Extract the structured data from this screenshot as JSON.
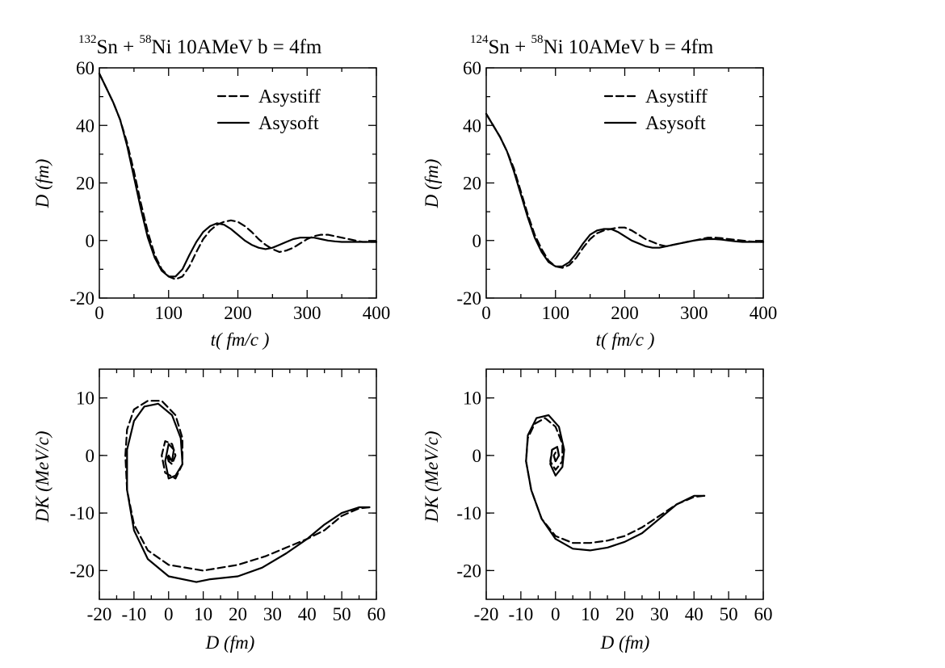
{
  "chart_data": [
    {
      "type": "line",
      "title_parts": {
        "mass1": "132",
        "el1": "Sn + ",
        "mass2": "58",
        "el2": "Ni  10AMeV  b = 4fm"
      },
      "xlabel": "t( fm/c )",
      "ylabel": "D (fm)",
      "xlim": [
        0,
        400
      ],
      "ylim": [
        -20,
        60
      ],
      "xticks": [
        0,
        100,
        200,
        300,
        400
      ],
      "yticks": [
        -20,
        0,
        20,
        40,
        60
      ],
      "xtick_labels": [
        "0",
        "100",
        "200",
        "300",
        "400"
      ],
      "ytick_labels": [
        "-20",
        "0",
        "20",
        "40",
        "60"
      ],
      "legend": {
        "placement": "top-right",
        "entries": [
          "Asystiff",
          "Asysoft"
        ]
      },
      "series": [
        {
          "name": "Asystiff",
          "style": "dashed",
          "x": [
            0,
            10,
            20,
            30,
            40,
            50,
            60,
            70,
            80,
            90,
            100,
            110,
            120,
            130,
            140,
            150,
            160,
            170,
            180,
            190,
            200,
            210,
            220,
            230,
            240,
            250,
            260,
            270,
            280,
            290,
            300,
            310,
            320,
            330,
            340,
            350,
            360,
            370,
            380,
            390,
            400
          ],
          "y": [
            58,
            53,
            48,
            42,
            34,
            24,
            13,
            3,
            -5,
            -10,
            -12.5,
            -13.5,
            -12.5,
            -9,
            -4,
            0.5,
            3.5,
            5.5,
            6.5,
            7,
            6.5,
            5,
            3,
            0.5,
            -1.5,
            -3,
            -4,
            -3.5,
            -2.5,
            -1,
            0.5,
            1.5,
            2,
            2,
            1.5,
            1,
            0.5,
            0,
            -0.5,
            -0.5,
            -0.5
          ]
        },
        {
          "name": "Asysoft",
          "style": "solid",
          "x": [
            0,
            10,
            20,
            30,
            40,
            50,
            60,
            70,
            80,
            90,
            100,
            110,
            120,
            130,
            140,
            150,
            160,
            170,
            180,
            190,
            200,
            210,
            220,
            230,
            240,
            250,
            260,
            270,
            280,
            290,
            300,
            310,
            320,
            330,
            340,
            350,
            360,
            370,
            380,
            390,
            400
          ],
          "y": [
            58,
            53,
            48,
            42,
            33,
            22,
            11,
            1,
            -6,
            -10.5,
            -12.5,
            -12.5,
            -10,
            -5,
            -0.5,
            3,
            5,
            6,
            5.5,
            4,
            2,
            0,
            -1.5,
            -2.5,
            -3,
            -2.5,
            -1.5,
            -0.5,
            0.5,
            1,
            1,
            1,
            0.5,
            0,
            -0.3,
            -0.5,
            -0.5,
            -0.5,
            -0.5,
            -0.5,
            -0.5
          ]
        }
      ]
    },
    {
      "type": "line",
      "title_parts": {
        "mass1": "124",
        "el1": "Sn + ",
        "mass2": "58",
        "el2": "Ni  10AMeV  b = 4fm"
      },
      "xlabel": "t( fm/c )",
      "ylabel": "D (fm)",
      "xlim": [
        0,
        400
      ],
      "ylim": [
        -20,
        60
      ],
      "xticks": [
        0,
        100,
        200,
        300,
        400
      ],
      "yticks": [
        -20,
        0,
        20,
        40,
        60
      ],
      "xtick_labels": [
        "0",
        "100",
        "200",
        "300",
        "400"
      ],
      "ytick_labels": [
        "-20",
        "0",
        "20",
        "40",
        "60"
      ],
      "legend": {
        "placement": "top-right",
        "entries": [
          "Asystiff",
          "Asysoft"
        ]
      },
      "series": [
        {
          "name": "Asystiff",
          "style": "dashed",
          "x": [
            0,
            10,
            20,
            30,
            40,
            50,
            60,
            70,
            80,
            90,
            100,
            110,
            120,
            130,
            140,
            150,
            160,
            170,
            180,
            190,
            200,
            210,
            220,
            230,
            240,
            250,
            260,
            270,
            280,
            290,
            300,
            310,
            320,
            330,
            340,
            350,
            360,
            370,
            380,
            390,
            400
          ],
          "y": [
            44,
            40,
            36,
            31,
            25,
            17,
            9,
            2,
            -3,
            -7,
            -9,
            -9.5,
            -8.5,
            -6,
            -2.5,
            0.5,
            2.5,
            3.5,
            4,
            4.5,
            4.5,
            3.5,
            2,
            0.5,
            -0.5,
            -1.5,
            -2,
            -1.5,
            -1,
            -0.5,
            0,
            0.5,
            1,
            1,
            0.8,
            0.5,
            0.2,
            0,
            -0.3,
            -0.5,
            -0.5
          ]
        },
        {
          "name": "Asysoft",
          "style": "solid",
          "x": [
            0,
            10,
            20,
            30,
            40,
            50,
            60,
            70,
            80,
            90,
            100,
            110,
            120,
            130,
            140,
            150,
            160,
            170,
            180,
            190,
            200,
            210,
            220,
            230,
            240,
            250,
            260,
            270,
            280,
            290,
            300,
            310,
            320,
            330,
            340,
            350,
            360,
            370,
            380,
            390,
            400
          ],
          "y": [
            44,
            40,
            36,
            31,
            24,
            16,
            8,
            1,
            -4,
            -7.5,
            -9,
            -9,
            -7.5,
            -4.5,
            -1,
            2,
            3.5,
            4,
            4,
            3,
            1.5,
            0,
            -1,
            -2,
            -2.5,
            -2.5,
            -2,
            -1.5,
            -1,
            -0.5,
            0,
            0.3,
            0.5,
            0.5,
            0.3,
            0,
            -0.3,
            -0.5,
            -0.5,
            -0.5,
            -0.5
          ]
        }
      ]
    },
    {
      "type": "line",
      "title": "",
      "xlabel": "D (fm)",
      "ylabel": "DK (MeV/c)",
      "xlim": [
        -20,
        60
      ],
      "ylim": [
        -25,
        15
      ],
      "xticks": [
        -20,
        -10,
        0,
        10,
        20,
        30,
        40,
        50,
        60
      ],
      "yticks": [
        -20,
        -10,
        0,
        10
      ],
      "xtick_labels": [
        "-20",
        "-10",
        "0",
        "10",
        "20",
        "30",
        "40",
        "50",
        "60"
      ],
      "ytick_labels": [
        "-20",
        "-10",
        "0",
        "10"
      ],
      "series": [
        {
          "name": "Asystiff",
          "style": "dashed",
          "x": [
            58,
            55,
            50,
            45,
            40,
            34,
            28,
            20,
            10,
            0,
            -6,
            -10,
            -12,
            -12.5,
            -12,
            -10,
            -6,
            -2,
            2,
            4,
            4,
            2,
            -1,
            -2,
            -1,
            1,
            2,
            1,
            0,
            -0.5,
            0
          ],
          "y": [
            -9,
            -9.2,
            -10.5,
            -13,
            -14.5,
            -16,
            -17.5,
            -19,
            -20,
            -19,
            -16.5,
            -12,
            -6,
            0,
            4.5,
            8,
            9.5,
            9.5,
            7,
            3,
            -1.5,
            -4,
            -3,
            0,
            2.5,
            2,
            0,
            -1.5,
            -1,
            0,
            -0.5
          ]
        },
        {
          "name": "Asysoft",
          "style": "solid",
          "x": [
            58,
            55,
            50,
            45,
            40,
            34,
            27,
            20,
            12,
            8,
            0,
            -6,
            -10,
            -12,
            -12,
            -10,
            -7,
            -3,
            1,
            3.5,
            4,
            2,
            0,
            -1,
            0,
            1.5,
            1,
            0,
            0,
            0.5
          ],
          "y": [
            -9,
            -9,
            -10,
            -12,
            -14.5,
            -17,
            -19.5,
            -21,
            -21.5,
            -22,
            -21,
            -18,
            -13,
            -6,
            1,
            6,
            8.5,
            9,
            7,
            3,
            -1.5,
            -3.5,
            -4,
            -1,
            2,
            1,
            -1,
            0,
            -1,
            -0.5
          ]
        }
      ]
    },
    {
      "type": "line",
      "title": "",
      "xlabel": "D (fm)",
      "ylabel": "DK (MeV/c)",
      "xlim": [
        -20,
        60
      ],
      "ylim": [
        -25,
        15
      ],
      "xticks": [
        -20,
        -10,
        0,
        10,
        20,
        30,
        40,
        50,
        60
      ],
      "yticks": [
        -20,
        -10,
        0,
        10
      ],
      "xtick_labels": [
        "-20",
        "-10",
        "0",
        "10",
        "20",
        "30",
        "40",
        "50",
        "60"
      ],
      "ytick_labels": [
        "-20",
        "-10",
        "0",
        "10"
      ],
      "series": [
        {
          "name": "Asystiff",
          "style": "dashed",
          "x": [
            43,
            40,
            35,
            30,
            25,
            20,
            15,
            10,
            5,
            0,
            -4,
            -7,
            -8.5,
            -8,
            -6,
            -3,
            0,
            2,
            2,
            0,
            -1.5,
            -1,
            0.5,
            1,
            0,
            -0.5,
            0
          ],
          "y": [
            -7,
            -7.2,
            -8.5,
            -10.5,
            -12.5,
            -14,
            -14.8,
            -15.2,
            -15.2,
            -14,
            -11,
            -6,
            -1,
            3,
            5.5,
            6.5,
            5,
            2,
            -1,
            -2.5,
            -1,
            1,
            1.5,
            0,
            -1,
            0,
            0
          ]
        },
        {
          "name": "Asysoft",
          "style": "solid",
          "x": [
            43,
            40,
            35,
            30,
            25,
            20,
            15,
            10,
            5,
            0,
            -4,
            -7,
            -8.5,
            -8,
            -5.5,
            -2,
            1,
            2.5,
            2,
            0,
            -1.5,
            -1,
            0.5,
            1,
            0,
            -0.5,
            0
          ],
          "y": [
            -7,
            -7,
            -8.5,
            -11,
            -13.5,
            -15,
            -16,
            -16.5,
            -16.2,
            -14.5,
            -11,
            -6,
            -1,
            3.5,
            6.5,
            7,
            5,
            1,
            -2,
            -3.5,
            -1.5,
            1,
            1.5,
            0,
            -1,
            0,
            0.5
          ]
        }
      ]
    }
  ]
}
